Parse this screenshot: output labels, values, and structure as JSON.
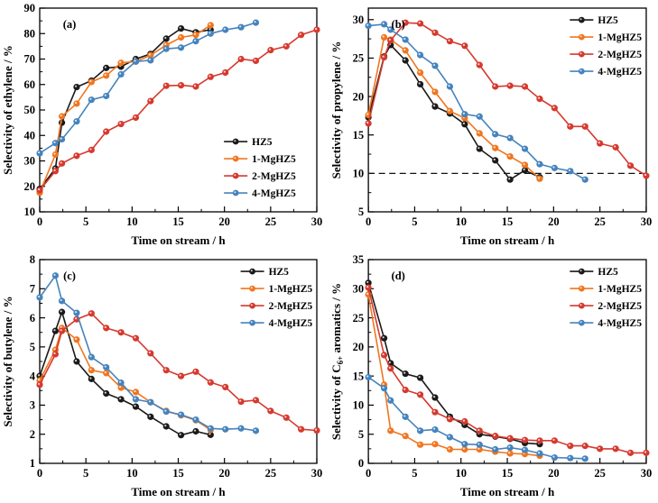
{
  "figure": {
    "background": "#ffffff",
    "series_colors": {
      "HZ5": "#1a1a1a",
      "1-MgHZ5": "#f0761f",
      "2-MgHZ5": "#d6392e",
      "4-MgHZ5": "#4583bd"
    },
    "legend_labels": [
      "HZ5",
      "1-MgHZ5",
      "2-MgHZ5",
      "4-MgHZ5"
    ],
    "threshold_line_color": "#111111"
  },
  "chart_data": [
    {
      "type": "line",
      "panel_label": "(a)",
      "xlabel": "Time on stream / h",
      "ylabel": "Selectivity of ethylene / %",
      "xlim": [
        0,
        30
      ],
      "ylim": [
        10,
        90
      ],
      "xticks": [
        0,
        5,
        10,
        15,
        20,
        25,
        30
      ],
      "yticks": [
        10,
        20,
        30,
        40,
        50,
        60,
        70,
        80,
        90
      ],
      "x_minor_step": 2.5,
      "y_minor_step": 5,
      "grid": false,
      "legend_pos": {
        "fx": 0.665,
        "fy": 0.655
      },
      "series": [
        {
          "name": "HZ5",
          "x": [
            0,
            1.7,
            2.4,
            4,
            5.6,
            7.2,
            8.8,
            10.4,
            12,
            13.7,
            15.3,
            16.9,
            18.5
          ],
          "y": [
            19,
            27,
            45,
            59,
            61.5,
            66.5,
            67,
            70,
            72,
            78,
            82,
            80.5,
            81.5
          ]
        },
        {
          "name": "1-MgHZ5",
          "x": [
            0,
            1.7,
            2.4,
            4,
            5.6,
            7.2,
            8.8,
            10.4,
            12,
            13.7,
            15.3,
            16.9,
            18.5
          ],
          "y": [
            17.5,
            32.5,
            47.5,
            52.5,
            61,
            63.5,
            68.5,
            69,
            71.5,
            75.5,
            78.5,
            79.5,
            83.3
          ]
        },
        {
          "name": "2-MgHZ5",
          "x": [
            0,
            1.7,
            2.4,
            4,
            5.6,
            7.2,
            8.8,
            10.4,
            12,
            13.7,
            15.3,
            16.9,
            18.5,
            20.1,
            21.8,
            23.4,
            25,
            26.7,
            28.3,
            30
          ],
          "y": [
            18.5,
            26,
            29,
            32,
            34.3,
            41.5,
            44.5,
            47,
            53.5,
            59.5,
            59.7,
            59.2,
            63,
            64.7,
            70,
            69.3,
            73.5,
            75,
            79.5,
            81.5
          ]
        },
        {
          "name": "4-MgHZ5",
          "x": [
            0,
            1.7,
            2.4,
            4,
            5.6,
            7.2,
            8.8,
            10.4,
            12,
            13.7,
            15.3,
            16.9,
            18.5,
            20.1,
            21.8,
            23.4
          ],
          "y": [
            33,
            37,
            38.5,
            45.5,
            54,
            55.5,
            64,
            69,
            69.5,
            74,
            74.5,
            77,
            80,
            81.5,
            82.5,
            84.3
          ]
        }
      ]
    },
    {
      "type": "line",
      "panel_label": "(b)",
      "xlabel": "Time on stream / h",
      "ylabel": "Selectivity of propylene / %",
      "xlim": [
        0,
        30
      ],
      "ylim": [
        5,
        31.5
      ],
      "xticks": [
        0,
        5,
        10,
        15,
        20,
        25,
        30
      ],
      "yticks": [
        5,
        10,
        15,
        20,
        25,
        30
      ],
      "x_minor_step": 2.5,
      "y_minor_step": 2.5,
      "grid": false,
      "dash_y": 10,
      "legend_pos": {
        "fx": 0.725,
        "fy": 0.058
      },
      "series": [
        {
          "name": "HZ5",
          "x": [
            0,
            1.7,
            2.4,
            4,
            5.6,
            7.2,
            8.8,
            10.4,
            12,
            13.7,
            15.3,
            16.9,
            18.5
          ],
          "y": [
            17.3,
            25.2,
            26.7,
            24.7,
            21.6,
            18.7,
            17.8,
            16.4,
            13.2,
            11.7,
            9.2,
            10.4,
            9.5
          ]
        },
        {
          "name": "1-MgHZ5",
          "x": [
            0,
            1.7,
            2.4,
            4,
            5.6,
            7.2,
            8.8,
            10.4,
            12,
            13.7,
            15.3,
            16.9,
            18.5
          ],
          "y": [
            17.6,
            27.7,
            27.4,
            26,
            23.1,
            20.6,
            18.1,
            17.2,
            15.2,
            13.3,
            12.2,
            11.1,
            9.3
          ]
        },
        {
          "name": "2-MgHZ5",
          "x": [
            0,
            1.7,
            2.4,
            4,
            5.6,
            7.2,
            8.8,
            10.4,
            12,
            13.7,
            15.3,
            16.9,
            18.5,
            20.1,
            21.8,
            23.4,
            25,
            26.7,
            28.3,
            30
          ],
          "y": [
            16.5,
            25.1,
            27.3,
            29.6,
            29.5,
            28.3,
            27.2,
            26.6,
            24.1,
            21.3,
            21.4,
            21.3,
            19.7,
            18.5,
            16.1,
            16.1,
            13.9,
            13.4,
            11,
            9.7
          ]
        },
        {
          "name": "4-MgHZ5",
          "x": [
            0,
            1.7,
            2.4,
            4,
            5.6,
            7.2,
            8.8,
            10.4,
            12,
            13.7,
            15.3,
            16.9,
            18.5,
            20.1,
            21.8,
            23.4
          ],
          "y": [
            29.2,
            29.4,
            28.7,
            27.4,
            25.4,
            24,
            21.3,
            17.7,
            17.4,
            15.1,
            14.6,
            13.2,
            11.2,
            10.7,
            10.3,
            9.2
          ]
        }
      ]
    },
    {
      "type": "line",
      "panel_label": "(c)",
      "xlabel": "Time on stream / h",
      "ylabel": "Selectivity of butylene / %",
      "xlim": [
        0,
        30
      ],
      "ylim": [
        1,
        8
      ],
      "xticks": [
        0,
        5,
        10,
        15,
        20,
        25,
        30
      ],
      "yticks": [
        1,
        2,
        3,
        4,
        5,
        6,
        7,
        8
      ],
      "x_minor_step": 2.5,
      "y_minor_step": 0.5,
      "grid": false,
      "legend_pos": {
        "fx": 0.725,
        "fy": 0.058
      },
      "series": [
        {
          "name": "HZ5",
          "x": [
            0,
            1.7,
            2.4,
            4,
            5.6,
            7.2,
            8.8,
            10.4,
            12,
            13.7,
            15.3,
            16.9,
            18.5
          ],
          "y": [
            4,
            5.55,
            6.2,
            4.5,
            3.9,
            3.4,
            3.2,
            2.95,
            2.6,
            2.27,
            1.97,
            2.1,
            1.98
          ]
        },
        {
          "name": "1-MgHZ5",
          "x": [
            0,
            1.7,
            2.4,
            4,
            5.6,
            7.2,
            8.8,
            10.4,
            12,
            13.7,
            15.3,
            16.9,
            18.5
          ],
          "y": [
            3.85,
            4.9,
            5.65,
            5.25,
            4.2,
            4.1,
            3.6,
            3.45,
            3.1,
            2.8,
            2.65,
            2.48,
            2.15
          ]
        },
        {
          "name": "2-MgHZ5",
          "x": [
            0,
            1.7,
            2.4,
            4,
            5.6,
            7.2,
            8.8,
            10.4,
            12,
            13.7,
            15.3,
            16.9,
            18.5,
            20.1,
            21.8,
            23.4,
            25,
            26.7,
            28.3,
            30
          ],
          "y": [
            3.7,
            4.75,
            5.55,
            5.95,
            6.15,
            5.65,
            5.5,
            5.3,
            4.78,
            4.2,
            4,
            4.15,
            3.78,
            3.62,
            3.12,
            3.17,
            2.8,
            2.57,
            2.17,
            2.13
          ]
        },
        {
          "name": "4-MgHZ5",
          "x": [
            0,
            1.7,
            2.4,
            4,
            5.6,
            7.2,
            8.8,
            10.4,
            12,
            13.7,
            15.3,
            16.9,
            18.5,
            20.1,
            21.8,
            23.4
          ],
          "y": [
            6.7,
            7.45,
            6.58,
            6.17,
            4.65,
            4.3,
            3.77,
            3.2,
            3.1,
            2.78,
            2.67,
            2.5,
            2.2,
            2.17,
            2.2,
            2.12
          ]
        }
      ]
    },
    {
      "type": "line",
      "panel_label": "(d)",
      "xlabel": "Time on stream / h",
      "ylabel": "Selectivity of C6+ aromatics / %",
      "ylabel_parts": [
        {
          "t": "Selectivity of C"
        },
        {
          "t": "6+",
          "sub": true
        },
        {
          "t": " aromatics / %"
        }
      ],
      "xlim": [
        0,
        30
      ],
      "ylim": [
        0,
        35
      ],
      "xticks": [
        0,
        5,
        10,
        15,
        20,
        25,
        30
      ],
      "yticks": [
        0,
        5,
        10,
        15,
        20,
        25,
        30,
        35
      ],
      "x_minor_step": 2.5,
      "y_minor_step": 2.5,
      "grid": false,
      "legend_pos": {
        "fx": 0.725,
        "fy": 0.058
      },
      "series": [
        {
          "name": "HZ5",
          "x": [
            0,
            1.7,
            2.4,
            4,
            5.6,
            7.2,
            8.8,
            10.4,
            12,
            13.7,
            15.3,
            16.9,
            18.5
          ],
          "y": [
            31,
            21.5,
            17.2,
            15.4,
            14.7,
            11.3,
            8,
            6.6,
            5,
            4.6,
            4.2,
            3.5,
            3.3
          ]
        },
        {
          "name": "1-MgHZ5",
          "x": [
            0,
            1.7,
            2.4,
            4,
            5.6,
            7.2,
            8.8,
            10.4,
            12,
            13.7,
            15.3,
            16.9,
            18.5
          ],
          "y": [
            29,
            13.5,
            5.6,
            4.7,
            3.2,
            3.3,
            2.4,
            2.4,
            2.4,
            2,
            1.7,
            1.6,
            1.3
          ]
        },
        {
          "name": "2-MgHZ5",
          "x": [
            0,
            1.7,
            2.4,
            4,
            5.6,
            7.2,
            8.8,
            10.4,
            12,
            13.7,
            15.3,
            16.9,
            18.5,
            20.1,
            21.8,
            23.4,
            25,
            26.7,
            28.3,
            30
          ],
          "y": [
            30.2,
            18.6,
            16.3,
            12.6,
            11.8,
            8.8,
            7.6,
            7.2,
            5.6,
            4.7,
            4.3,
            4,
            3.9,
            3.9,
            3,
            3,
            2.5,
            2.5,
            1.8,
            1.8
          ]
        },
        {
          "name": "4-MgHZ5",
          "x": [
            0,
            1.7,
            2.4,
            4,
            5.6,
            7.2,
            8.8,
            10.4,
            12,
            13.7,
            15.3,
            16.9,
            18.5,
            20.1,
            21.8,
            23.4
          ],
          "y": [
            14.8,
            12.9,
            10.8,
            8,
            5.6,
            5.8,
            4.5,
            3.3,
            3.2,
            2.4,
            2.7,
            2.3,
            1.7,
            1,
            0.9,
            0.8
          ]
        }
      ]
    }
  ]
}
